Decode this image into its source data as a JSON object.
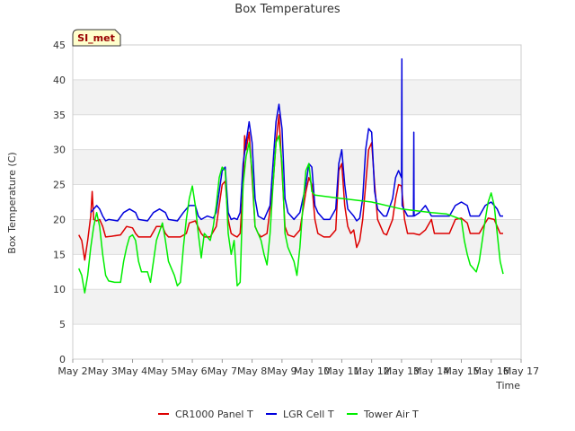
{
  "chart_data": {
    "type": "line",
    "title": "Box Temperatures",
    "xlabel": "Time",
    "ylabel": "Box Temperature (C)",
    "ylim": [
      0,
      45
    ],
    "yticks": [
      0,
      5,
      10,
      15,
      20,
      25,
      30,
      35,
      40,
      45
    ],
    "xlim": [
      2,
      17
    ],
    "xticks": [
      {
        "v": 2,
        "label": "May 2"
      },
      {
        "v": 3,
        "label": "May 3"
      },
      {
        "v": 4,
        "label": "May 4"
      },
      {
        "v": 5,
        "label": "May 5"
      },
      {
        "v": 6,
        "label": "May 6"
      },
      {
        "v": 7,
        "label": "May 7"
      },
      {
        "v": 8,
        "label": "May 8"
      },
      {
        "v": 9,
        "label": "May 9"
      },
      {
        "v": 10,
        "label": "May 10"
      },
      {
        "v": 11,
        "label": "May 11"
      },
      {
        "v": 12,
        "label": "May 12"
      },
      {
        "v": 13,
        "label": "May 13"
      },
      {
        "v": 14,
        "label": "May 14"
      },
      {
        "v": 15,
        "label": "May 15"
      },
      {
        "v": 16,
        "label": "May 16"
      },
      {
        "v": 17,
        "label": "May 17"
      }
    ],
    "annotation": "SI_met",
    "legend_position": "bottom",
    "series": [
      {
        "name": "CR1000 Panel T",
        "color": "#dd0000",
        "points": [
          [
            2.2,
            17.8
          ],
          [
            2.3,
            17
          ],
          [
            2.4,
            14.2
          ],
          [
            2.5,
            17
          ],
          [
            2.6,
            20.5
          ],
          [
            2.65,
            24
          ],
          [
            2.7,
            20
          ],
          [
            2.8,
            19.8
          ],
          [
            2.9,
            20
          ],
          [
            3.0,
            19
          ],
          [
            3.1,
            17.5
          ],
          [
            3.3,
            17.6
          ],
          [
            3.6,
            17.8
          ],
          [
            3.8,
            19
          ],
          [
            4.0,
            18.8
          ],
          [
            4.1,
            18
          ],
          [
            4.2,
            17.5
          ],
          [
            4.6,
            17.5
          ],
          [
            4.8,
            19
          ],
          [
            5.0,
            19
          ],
          [
            5.1,
            18
          ],
          [
            5.2,
            17.5
          ],
          [
            5.6,
            17.5
          ],
          [
            5.8,
            18
          ],
          [
            5.9,
            19.5
          ],
          [
            6.1,
            19.8
          ],
          [
            6.3,
            18
          ],
          [
            6.4,
            17.5
          ],
          [
            6.6,
            17.5
          ],
          [
            6.8,
            19
          ],
          [
            6.9,
            22
          ],
          [
            7.0,
            25
          ],
          [
            7.1,
            25.5
          ],
          [
            7.2,
            20
          ],
          [
            7.3,
            18
          ],
          [
            7.4,
            17.7
          ],
          [
            7.5,
            17.5
          ],
          [
            7.6,
            18
          ],
          [
            7.7,
            25
          ],
          [
            7.75,
            32
          ],
          [
            7.8,
            30
          ],
          [
            7.9,
            32.5
          ],
          [
            8.0,
            26
          ],
          [
            8.1,
            19
          ],
          [
            8.2,
            18
          ],
          [
            8.3,
            17.5
          ],
          [
            8.5,
            18
          ],
          [
            8.7,
            25
          ],
          [
            8.8,
            31
          ],
          [
            8.9,
            35
          ],
          [
            9.0,
            27
          ],
          [
            9.1,
            19
          ],
          [
            9.2,
            17.8
          ],
          [
            9.4,
            17.5
          ],
          [
            9.6,
            18.5
          ],
          [
            9.8,
            24
          ],
          [
            9.9,
            26
          ],
          [
            10.0,
            25
          ],
          [
            10.1,
            20
          ],
          [
            10.2,
            18
          ],
          [
            10.4,
            17.5
          ],
          [
            10.6,
            17.5
          ],
          [
            10.8,
            18.5
          ],
          [
            10.9,
            27
          ],
          [
            11.0,
            28
          ],
          [
            11.1,
            22
          ],
          [
            11.2,
            19
          ],
          [
            11.3,
            18
          ],
          [
            11.4,
            18.5
          ],
          [
            11.5,
            16
          ],
          [
            11.6,
            17
          ],
          [
            11.7,
            20
          ],
          [
            11.8,
            25
          ],
          [
            11.9,
            30
          ],
          [
            12.0,
            31
          ],
          [
            12.1,
            25
          ],
          [
            12.2,
            20
          ],
          [
            12.4,
            18
          ],
          [
            12.5,
            17.8
          ],
          [
            12.7,
            20
          ],
          [
            12.8,
            23
          ],
          [
            12.9,
            25
          ],
          [
            13.0,
            24.8
          ],
          [
            13.1,
            20
          ],
          [
            13.2,
            18
          ],
          [
            13.4,
            18
          ],
          [
            13.6,
            17.8
          ],
          [
            13.8,
            18.5
          ],
          [
            14.0,
            20
          ],
          [
            14.1,
            18
          ],
          [
            14.3,
            18
          ],
          [
            14.6,
            18
          ],
          [
            14.8,
            20
          ],
          [
            15.0,
            20.2
          ],
          [
            15.2,
            19.5
          ],
          [
            15.3,
            18
          ],
          [
            15.6,
            18
          ],
          [
            15.8,
            19.5
          ],
          [
            15.9,
            20.2
          ],
          [
            16.1,
            20
          ],
          [
            16.2,
            19
          ],
          [
            16.3,
            18
          ],
          [
            16.4,
            18
          ]
        ]
      },
      {
        "name": "LGR Cell T",
        "color": "#0000dd",
        "points": [
          [
            2.6,
            21
          ],
          [
            2.8,
            22
          ],
          [
            2.9,
            21.5
          ],
          [
            3.0,
            20.5
          ],
          [
            3.1,
            19.8
          ],
          [
            3.2,
            20
          ],
          [
            3.5,
            19.8
          ],
          [
            3.7,
            21
          ],
          [
            3.9,
            21.5
          ],
          [
            4.1,
            21
          ],
          [
            4.2,
            20
          ],
          [
            4.5,
            19.8
          ],
          [
            4.7,
            21
          ],
          [
            4.9,
            21.5
          ],
          [
            5.1,
            21
          ],
          [
            5.2,
            20
          ],
          [
            5.5,
            19.8
          ],
          [
            5.7,
            21
          ],
          [
            5.9,
            22
          ],
          [
            6.1,
            22
          ],
          [
            6.2,
            20.5
          ],
          [
            6.3,
            20
          ],
          [
            6.5,
            20.5
          ],
          [
            6.7,
            20.2
          ],
          [
            6.8,
            21
          ],
          [
            6.9,
            24
          ],
          [
            7.0,
            27
          ],
          [
            7.1,
            27.5
          ],
          [
            7.2,
            21
          ],
          [
            7.3,
            20
          ],
          [
            7.4,
            20.2
          ],
          [
            7.5,
            20
          ],
          [
            7.6,
            21
          ],
          [
            7.7,
            28
          ],
          [
            7.8,
            31
          ],
          [
            7.9,
            34
          ],
          [
            8.0,
            31
          ],
          [
            8.1,
            23
          ],
          [
            8.2,
            20.5
          ],
          [
            8.4,
            20
          ],
          [
            8.6,
            22
          ],
          [
            8.7,
            28
          ],
          [
            8.8,
            34
          ],
          [
            8.9,
            36.5
          ],
          [
            9.0,
            33
          ],
          [
            9.1,
            23
          ],
          [
            9.2,
            21
          ],
          [
            9.4,
            20
          ],
          [
            9.6,
            21
          ],
          [
            9.8,
            25
          ],
          [
            9.9,
            28
          ],
          [
            10.0,
            27.5
          ],
          [
            10.1,
            22
          ],
          [
            10.2,
            21
          ],
          [
            10.4,
            20
          ],
          [
            10.6,
            20
          ],
          [
            10.8,
            21.5
          ],
          [
            10.9,
            28
          ],
          [
            11.0,
            30
          ],
          [
            11.1,
            25
          ],
          [
            11.2,
            21.5
          ],
          [
            11.4,
            20.5
          ],
          [
            11.5,
            19.8
          ],
          [
            11.6,
            20.2
          ],
          [
            11.7,
            23
          ],
          [
            11.8,
            30
          ],
          [
            11.9,
            33
          ],
          [
            12.0,
            32.5
          ],
          [
            12.1,
            24
          ],
          [
            12.2,
            21.5
          ],
          [
            12.4,
            20.5
          ],
          [
            12.5,
            20.5
          ],
          [
            12.7,
            23
          ],
          [
            12.8,
            26
          ],
          [
            12.9,
            27
          ],
          [
            13.0,
            26
          ],
          [
            13.01,
            43
          ],
          [
            13.02,
            22
          ],
          [
            13.2,
            20.5
          ],
          [
            13.4,
            20.5
          ],
          [
            13.41,
            32.5
          ],
          [
            13.42,
            20.5
          ],
          [
            13.6,
            21
          ],
          [
            13.8,
            22
          ],
          [
            14.0,
            20.5
          ],
          [
            14.2,
            20.5
          ],
          [
            14.6,
            20.5
          ],
          [
            14.8,
            22
          ],
          [
            15.0,
            22.5
          ],
          [
            15.2,
            22
          ],
          [
            15.3,
            20.5
          ],
          [
            15.6,
            20.5
          ],
          [
            15.8,
            22
          ],
          [
            16.0,
            22.5
          ],
          [
            16.2,
            21.5
          ],
          [
            16.3,
            20.5
          ],
          [
            16.4,
            20.5
          ]
        ]
      },
      {
        "name": "Tower Air T",
        "color": "#00ee00",
        "points": [
          [
            2.2,
            13
          ],
          [
            2.3,
            12
          ],
          [
            2.4,
            9.5
          ],
          [
            2.5,
            12
          ],
          [
            2.6,
            16
          ],
          [
            2.7,
            19
          ],
          [
            2.8,
            21
          ],
          [
            2.9,
            19
          ],
          [
            3.0,
            15
          ],
          [
            3.1,
            12
          ],
          [
            3.2,
            11.2
          ],
          [
            3.4,
            11
          ],
          [
            3.6,
            11
          ],
          [
            3.7,
            14
          ],
          [
            3.8,
            16
          ],
          [
            3.9,
            17.5
          ],
          [
            4.0,
            17.8
          ],
          [
            4.1,
            17
          ],
          [
            4.2,
            14
          ],
          [
            4.3,
            12.5
          ],
          [
            4.5,
            12.5
          ],
          [
            4.6,
            11
          ],
          [
            4.7,
            14
          ],
          [
            4.8,
            17
          ],
          [
            5.0,
            19.5
          ],
          [
            5.1,
            17
          ],
          [
            5.2,
            14
          ],
          [
            5.3,
            13
          ],
          [
            5.4,
            12
          ],
          [
            5.5,
            10.5
          ],
          [
            5.6,
            11
          ],
          [
            5.7,
            16
          ],
          [
            5.8,
            20
          ],
          [
            5.9,
            23
          ],
          [
            6.0,
            24.8
          ],
          [
            6.1,
            22
          ],
          [
            6.2,
            18
          ],
          [
            6.3,
            14.5
          ],
          [
            6.4,
            18
          ],
          [
            6.5,
            17.5
          ],
          [
            6.6,
            17
          ],
          [
            6.7,
            19
          ],
          [
            6.8,
            22
          ],
          [
            6.9,
            26
          ],
          [
            7.0,
            27.5
          ],
          [
            7.1,
            27
          ],
          [
            7.2,
            18
          ],
          [
            7.3,
            15
          ],
          [
            7.4,
            17
          ],
          [
            7.5,
            10.5
          ],
          [
            7.6,
            11
          ],
          [
            7.7,
            25
          ],
          [
            7.8,
            29
          ],
          [
            7.9,
            31
          ],
          [
            8.0,
            27
          ],
          [
            8.1,
            19
          ],
          [
            8.2,
            18
          ],
          [
            8.3,
            17
          ],
          [
            8.4,
            15
          ],
          [
            8.5,
            13.5
          ],
          [
            8.6,
            18
          ],
          [
            8.7,
            25
          ],
          [
            8.8,
            31
          ],
          [
            8.9,
            32
          ],
          [
            9.0,
            28
          ],
          [
            9.1,
            18
          ],
          [
            9.2,
            16
          ],
          [
            9.3,
            15
          ],
          [
            9.4,
            14
          ],
          [
            9.5,
            12
          ],
          [
            9.6,
            16
          ],
          [
            9.7,
            22
          ],
          [
            9.8,
            27
          ],
          [
            9.9,
            28
          ],
          [
            10.0,
            24
          ],
          [
            10.1,
            23.5
          ],
          [
            11.0,
            23
          ],
          [
            12.0,
            22.5
          ],
          [
            13.0,
            21.5
          ],
          [
            14.0,
            21
          ],
          [
            14.5,
            20.8
          ],
          [
            15.0,
            20
          ],
          [
            15.1,
            17
          ],
          [
            15.2,
            15
          ],
          [
            15.3,
            13.5
          ],
          [
            15.4,
            13
          ],
          [
            15.5,
            12.5
          ],
          [
            15.6,
            14
          ],
          [
            15.7,
            17
          ],
          [
            15.8,
            20
          ],
          [
            15.9,
            22.5
          ],
          [
            16.0,
            23.8
          ],
          [
            16.1,
            22
          ],
          [
            16.2,
            18
          ],
          [
            16.3,
            14
          ],
          [
            16.4,
            12.2
          ]
        ]
      }
    ]
  }
}
